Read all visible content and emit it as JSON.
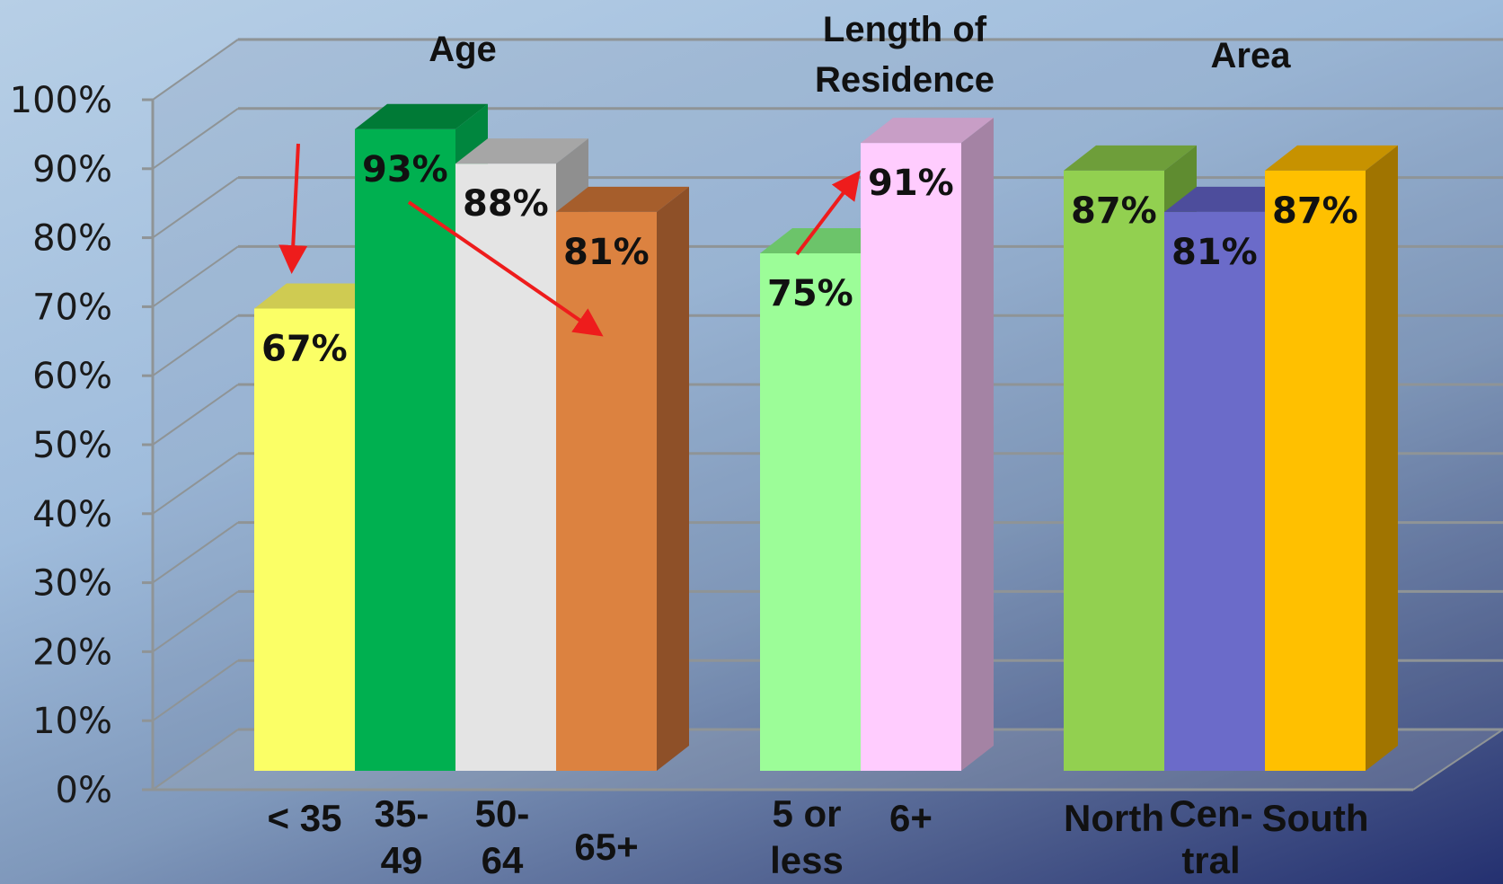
{
  "chart_data": {
    "type": "bar",
    "yticks": [
      "0%",
      "10%",
      "20%",
      "30%",
      "40%",
      "50%",
      "60%",
      "70%",
      "80%",
      "90%",
      "100%"
    ],
    "ylim": [
      0,
      100
    ],
    "grid": true,
    "groups": [
      {
        "label": [
          "Age"
        ],
        "bars": [
          {
            "category": [
              "< 35"
            ],
            "value": 67,
            "label": "67%",
            "color": "#fbff66",
            "top": "#cfcb52",
            "side": "#b7b44a"
          },
          {
            "category": [
              "35-",
              "49"
            ],
            "value": 93,
            "label": "93%",
            "color": "#00b050",
            "top": "#007a36",
            "side": "#00863e"
          },
          {
            "category": [
              "50-",
              "64"
            ],
            "value": 88,
            "label": "88%",
            "color": "#e4e4e4",
            "top": "#a6a6a6",
            "side": "#8f8f8f"
          },
          {
            "category": [
              "65+"
            ],
            "value": 81,
            "label": "81%",
            "color": "#dc8240",
            "top": "#a65e2c",
            "side": "#8e5028"
          }
        ]
      },
      {
        "label": [
          "Length of",
          "Residence"
        ],
        "bars": [
          {
            "category": [
              "5 or",
              "less"
            ],
            "value": 75,
            "label": "75%",
            "color": "#9cfd98",
            "top": "#6cc46a",
            "side": "#79c474"
          },
          {
            "category": [
              "6+"
            ],
            "value": 91,
            "label": "91%",
            "color": "#ffccfe",
            "top": "#c89ec6",
            "side": "#a483a4"
          }
        ]
      },
      {
        "label": [
          "Area"
        ],
        "bars": [
          {
            "category": [
              "North"
            ],
            "value": 87,
            "label": "87%",
            "color": "#92d050",
            "top": "#6e9e3a",
            "side": "#5f8c30"
          },
          {
            "category": [
              "Cen-",
              "tral"
            ],
            "value": 81,
            "label": "81%",
            "color": "#6b6bc9",
            "top": "#4d4d9c",
            "side": "#49498c"
          },
          {
            "category": [
              "South"
            ],
            "value": 87,
            "label": "87%",
            "color": "#ffc000",
            "top": "#c79200",
            "side": "#a07400"
          }
        ]
      }
    ],
    "colors": {
      "wall": "#7b8da8",
      "grid": "#8f9496",
      "arrow": "#ee1c1c"
    }
  }
}
